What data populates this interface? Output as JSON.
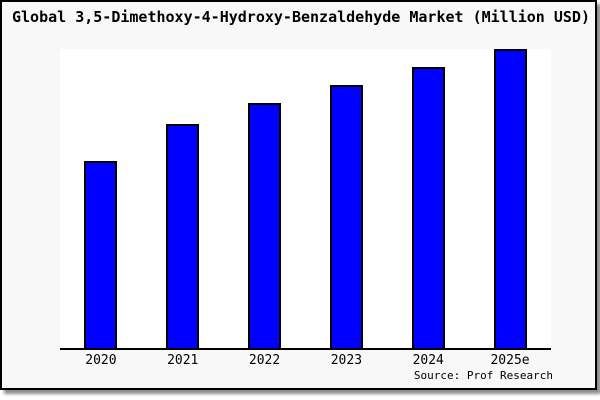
{
  "chart_data": {
    "type": "bar",
    "title": "Global 3,5-Dimethoxy-4-Hydroxy-Benzaldehyde Market (Million USD)",
    "categories": [
      "2020",
      "2021",
      "2022",
      "2023",
      "2024",
      "2025e"
    ],
    "values": [
      62.5,
      75,
      82,
      88,
      94,
      100
    ],
    "xlabel": "",
    "ylabel": "",
    "ylim": [
      0,
      100
    ],
    "grid": false,
    "legend": false,
    "y_axis_labels_visible": false,
    "source": "Source: Prof Research"
  },
  "colors": {
    "bar_fill": "#0000ff",
    "bar_border": "#000000",
    "frame_background": "#f8f8f8",
    "plot_background": "#ffffff",
    "axis_line": "#000000",
    "text": "#000000"
  }
}
